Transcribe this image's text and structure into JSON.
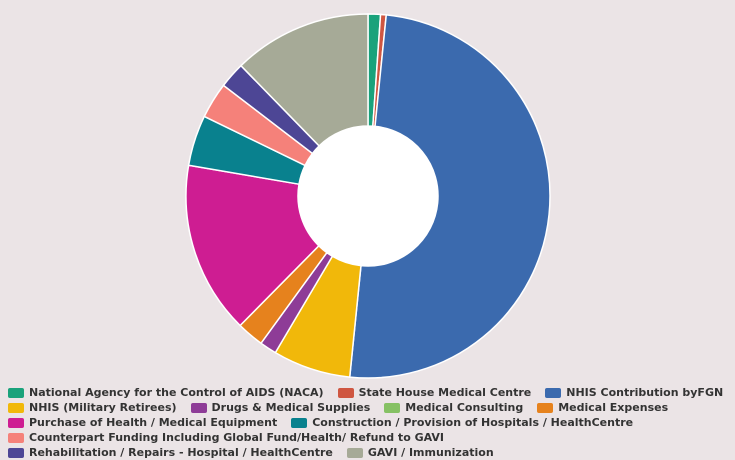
{
  "chart_data": {
    "type": "pie",
    "title": "",
    "donut": true,
    "slices": [
      {
        "label": "National Agency for the Control of AIDS (NACA)",
        "value": 1.1,
        "color": "#1aa27b"
      },
      {
        "label": "State House Medical Centre",
        "value": 0.5,
        "color": "#cf5641"
      },
      {
        "label": "NHIS Contribution byFGN",
        "value": 50.0,
        "color": "#3b6aae"
      },
      {
        "label": "NHIS (Military Retirees)",
        "value": 6.9,
        "color": "#f1b80a"
      },
      {
        "label": "Drugs & Medical Supplies",
        "value": 1.5,
        "color": "#8e3c97"
      },
      {
        "label": "Medical Consulting",
        "value": 0.0,
        "color": "#86c164"
      },
      {
        "label": "Medical Expenses",
        "value": 2.4,
        "color": "#e6821d"
      },
      {
        "label": "Purchase of Health / Medical Equipment",
        "value": 15.3,
        "color": "#ce1d92"
      },
      {
        "label": "Construction / Provision of Hospitals / HealthCentre",
        "value": 4.5,
        "color": "#09818e"
      },
      {
        "label": "Counterpart Funding Including Global Fund/Health/ Refund to GAVI",
        "value": 3.2,
        "color": "#f5817a"
      },
      {
        "label": "Rehabilitation / Repairs - Hospital / HealthCentre",
        "value": 2.3,
        "color": "#4d4695"
      },
      {
        "label": "GAVI / Immunization",
        "value": 12.3,
        "color": "#a6aa97"
      }
    ],
    "legend_position": "bottom"
  }
}
